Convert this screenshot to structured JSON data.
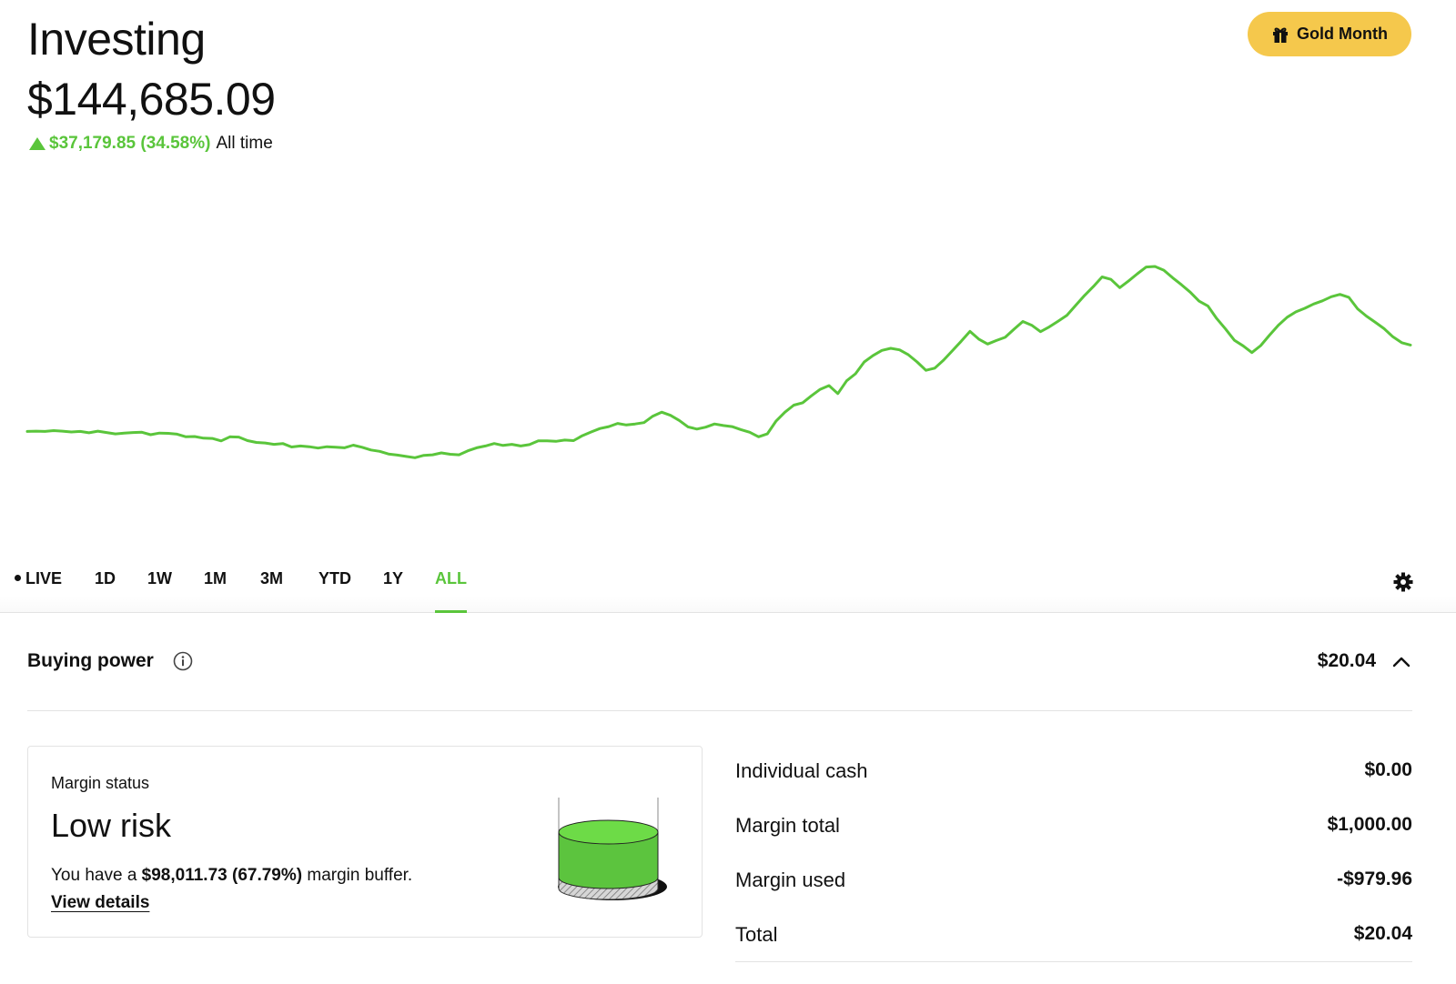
{
  "header": {
    "title": "Investing",
    "portfolio_value": "$144,685.09",
    "change_amount": "$37,179.85 (34.58%)",
    "change_period": "All time",
    "gold_button_label": "Gold Month"
  },
  "chart_data": {
    "type": "line",
    "title": "",
    "xlabel": "",
    "ylabel": "",
    "color": "#5ac53b",
    "ylim": [
      0,
      100
    ],
    "series": [
      {
        "values": [
          38.5,
          38.6,
          38.5,
          38.8,
          38.6,
          38.3,
          38.5,
          38,
          38.6,
          38.1,
          37.6,
          37.9,
          38.1,
          38.2,
          37.3,
          37.9,
          37.8,
          37.5,
          36.5,
          36.6,
          36,
          35.9,
          35,
          36.5,
          36.4,
          35.1,
          34.4,
          34.2,
          33.7,
          34,
          32.7,
          33.1,
          32.8,
          32.3,
          32.8,
          32.6,
          32.4,
          33.4,
          32.6,
          31.6,
          31.1,
          30.1,
          29.7,
          29.2,
          28.7,
          29.6,
          29.8,
          30.5,
          30,
          29.8,
          31.3,
          32.4,
          33.1,
          34,
          33.3,
          33.7,
          33.1,
          33.6,
          35,
          35,
          34.8,
          35.3,
          35.1,
          36.9,
          38.3,
          39.6,
          40.3,
          41.5,
          40.9,
          41.3,
          41.8,
          44.2,
          45.7,
          44.5,
          42.6,
          40.2,
          39.4,
          40.1,
          41.3,
          40.7,
          40.3,
          39.2,
          38.2,
          36.5,
          37.6,
          42.4,
          45.7,
          48.3,
          49.2,
          51.8,
          54.2,
          55.6,
          52.6,
          57.4,
          60,
          64.4,
          66.8,
          68.7,
          69.5,
          68.9,
          67.1,
          64.4,
          61.3,
          62.1,
          65.1,
          68.6,
          72.1,
          75.8,
          72.9,
          71.1,
          72.4,
          73.6,
          76.6,
          79.5,
          78.1,
          75.7,
          77.5,
          79.6,
          81.8,
          85.5,
          89.2,
          92.5,
          96.1,
          95.2,
          92.1,
          94.6,
          97.3,
          99.8,
          100,
          98.6,
          95.8,
          93.2,
          90.4,
          87.1,
          85.3,
          80.6,
          76.7,
          72.5,
          70.4,
          67.9,
          70.5,
          74.4,
          78.1,
          81.1,
          83.1,
          84.4,
          86,
          87.2,
          88.7,
          89.6,
          88.5,
          84.2,
          81.5,
          79.2,
          76.8,
          73.8,
          71.6,
          70.7
        ]
      }
    ]
  },
  "range_tabs": [
    {
      "label": "LIVE"
    },
    {
      "label": "1D"
    },
    {
      "label": "1W"
    },
    {
      "label": "1M"
    },
    {
      "label": "3M"
    },
    {
      "label": "YTD"
    },
    {
      "label": "1Y"
    },
    {
      "label": "ALL"
    }
  ],
  "active_range": "ALL",
  "buying_power": {
    "label": "Buying power",
    "value": "$20.04"
  },
  "margin_status": {
    "label": "Margin status",
    "value": "Low risk",
    "buffer_prefix": "You have a",
    "buffer_amount": "$98,011.73 (67.79%)",
    "buffer_suffix": "margin buffer.",
    "details_link": "View details"
  },
  "cash_breakdown": [
    {
      "label": "Individual cash",
      "value": "$0.00"
    },
    {
      "label": "Margin total",
      "value": "$1,000.00"
    },
    {
      "label": "Margin used",
      "value": "-$979.96"
    },
    {
      "label": "Total",
      "value": "$20.04"
    }
  ],
  "colors": {
    "accent_green": "#5ac53b",
    "gold": "#f5c84c"
  },
  "icons": {
    "gold": "gift-icon",
    "settings": "gear-icon",
    "info": "info-icon",
    "collapse": "chevron-up-icon"
  }
}
